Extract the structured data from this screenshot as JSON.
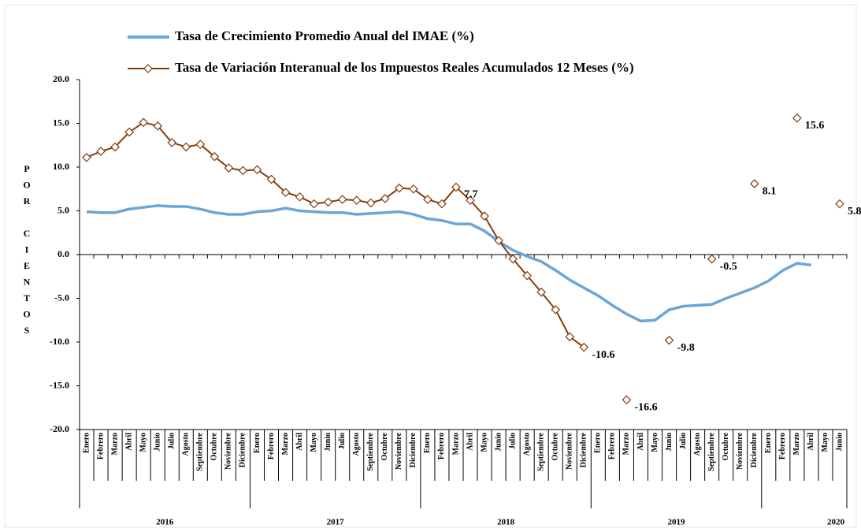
{
  "chart_data": {
    "type": "line",
    "y_label": "POR CIENTOS",
    "categories": [
      "Enero",
      "Febrero",
      "Marzo",
      "Abril",
      "Mayo",
      "Junio",
      "Julio",
      "Agosto",
      "Septiembre",
      "Octubre",
      "Noviembre",
      "Diciembre",
      "Enero",
      "Febrero",
      "Marzo",
      "Abril",
      "Mayo",
      "Junio",
      "Julio",
      "Agosto",
      "Septiembre",
      "Octubre",
      "Noviembre",
      "Diciembre",
      "Enero",
      "Febrero",
      "Marzo",
      "Abril",
      "Mayo",
      "Junio",
      "Julio",
      "Agosto",
      "Septiembre",
      "Octubre",
      "Noviembre",
      "Diciembre",
      "Enero",
      "Febrero",
      "Marzo",
      "Abril",
      "Mayo",
      "Junio",
      "Julio",
      "Agosto",
      "Septiembre",
      "Octubre",
      "Noviembre",
      "Diciembre",
      "Enero",
      "Febrero",
      "Marzo",
      "Abril",
      "Mayo",
      "Junio"
    ],
    "years": [
      "2016",
      "2017",
      "2018",
      "2019",
      "2020"
    ],
    "series": [
      {
        "name": "Tasa de Crecimiento Promedio Anual del IMAE (%)",
        "color": "#6aa6d8",
        "marker": "none",
        "values": [
          4.9,
          4.8,
          4.8,
          5.2,
          5.4,
          5.6,
          5.5,
          5.5,
          5.2,
          4.8,
          4.6,
          4.6,
          4.9,
          5.0,
          5.3,
          5.0,
          4.9,
          4.8,
          4.8,
          4.6,
          4.7,
          4.8,
          4.9,
          4.6,
          4.1,
          3.9,
          3.5,
          3.5,
          2.7,
          1.5,
          0.5,
          -0.2,
          -0.8,
          -1.8,
          -2.9,
          -3.8,
          -4.7,
          -5.8,
          -6.8,
          -7.6,
          -7.5,
          -6.3,
          -5.9,
          -5.8,
          -5.7,
          -5.0,
          -4.4,
          -3.8,
          -3.0,
          -1.8,
          -1.0,
          -1.2,
          null,
          null
        ]
      },
      {
        "name": "Tasa de Variación Interanual de los Impuestos Reales Acumulados 12 Meses (%)",
        "color": "#843c0c",
        "marker": "diamond",
        "values": [
          11.1,
          11.8,
          12.3,
          14.0,
          15.1,
          14.7,
          12.8,
          12.3,
          12.6,
          11.2,
          9.9,
          9.6,
          9.7,
          8.6,
          7.1,
          6.6,
          5.8,
          6.0,
          6.3,
          6.2,
          5.9,
          6.4,
          7.6,
          7.5,
          6.3,
          5.8,
          7.7,
          6.2,
          4.4,
          1.6,
          -0.5,
          -2.4,
          -4.3,
          -6.3,
          -9.4,
          -10.6,
          null,
          null,
          -16.6,
          null,
          null,
          -9.8,
          null,
          null,
          -0.5,
          null,
          null,
          8.1,
          null,
          null,
          15.6,
          null,
          null,
          5.8
        ],
        "value_labels": [
          null,
          null,
          null,
          null,
          null,
          null,
          null,
          null,
          null,
          null,
          null,
          null,
          null,
          null,
          null,
          null,
          null,
          null,
          null,
          null,
          null,
          null,
          null,
          null,
          null,
          null,
          "7.7",
          null,
          null,
          null,
          null,
          null,
          null,
          null,
          null,
          "-10.6",
          null,
          null,
          "-16.6",
          null,
          null,
          "-9.8",
          null,
          null,
          "-0.5",
          null,
          null,
          "8.1",
          null,
          null,
          "15.6",
          null,
          null,
          "5.8"
        ]
      }
    ],
    "ylim": [
      -20,
      20
    ],
    "yticks": [
      {
        "value": -20,
        "label": "-20.0"
      },
      {
        "value": -15,
        "label": "-15.0"
      },
      {
        "value": -10,
        "label": "-10.0"
      },
      {
        "value": -5,
        "label": "-5.0"
      },
      {
        "value": 0,
        "label": "0.0"
      },
      {
        "value": 5,
        "label": "5.0"
      },
      {
        "value": 10,
        "label": "10.0"
      },
      {
        "value": 15,
        "label": "15.0"
      },
      {
        "value": 20,
        "label": "20.0"
      }
    ],
    "grid": false
  }
}
